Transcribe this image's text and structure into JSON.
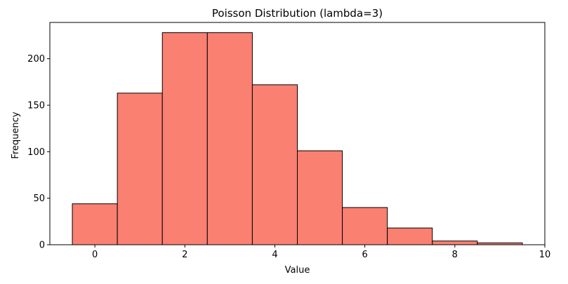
{
  "chart_data": {
    "type": "bar",
    "title": "Poisson Distribution (lambda=3)",
    "xlabel": "Value",
    "ylabel": "Frequency",
    "bin_edges": [
      -0.5,
      0.5,
      1.5,
      2.5,
      3.5,
      4.5,
      5.5,
      6.5,
      7.5,
      8.5,
      9.5
    ],
    "values": [
      44,
      163,
      228,
      228,
      172,
      101,
      40,
      18,
      4,
      2
    ],
    "xlim": [
      -1,
      10
    ],
    "ylim": [
      0,
      239
    ],
    "xticks": [
      0,
      2,
      4,
      6,
      8,
      10
    ],
    "yticks": [
      0,
      50,
      100,
      150,
      200
    ],
    "bar_color": "#fa8072",
    "edge_color": "#000000",
    "grid": false,
    "legend": "none"
  }
}
